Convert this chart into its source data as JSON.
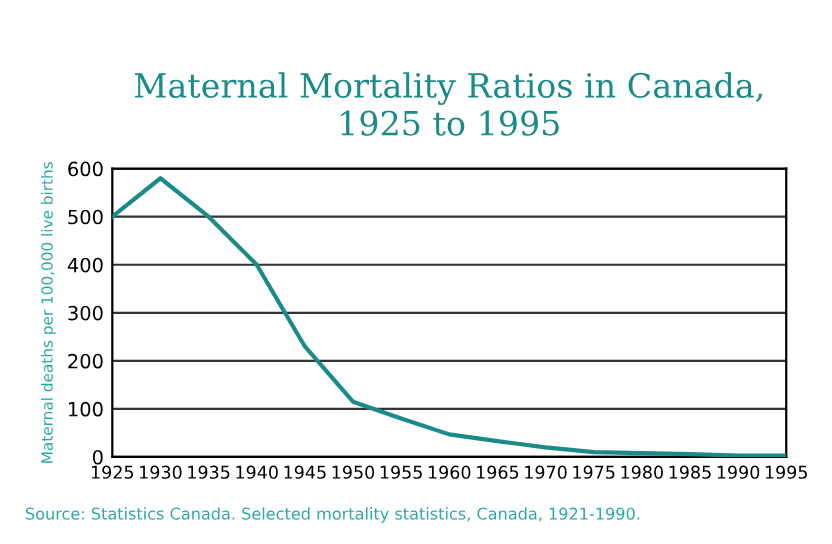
{
  "chart_data": {
    "type": "line",
    "title": "Maternal Mortality Ratios in Canada,\n1925 to 1995",
    "ylabel": "Maternal deaths per 100,000 live births",
    "x": [
      1925,
      1930,
      1935,
      1940,
      1945,
      1950,
      1955,
      1960,
      1965,
      1970,
      1975,
      1980,
      1985,
      1990,
      1995
    ],
    "series": [
      {
        "color": "#1a8a8a",
        "values": [
          500,
          580,
          500,
          400,
          230,
          115,
          80,
          47,
          33,
          20,
          10,
          8,
          6,
          3,
          3
        ]
      }
    ],
    "xlim": [
      1925,
      1995
    ],
    "xticks": [
      1925,
      1930,
      1935,
      1940,
      1945,
      1950,
      1955,
      1960,
      1965,
      1970,
      1975,
      1980,
      1985,
      1990,
      1995
    ],
    "ylim": [
      0,
      600
    ],
    "yticks": [
      0,
      100,
      200,
      300,
      400,
      500,
      600
    ],
    "grid": "y",
    "marker": "none",
    "line_style": "solid",
    "annotations": [
      "Source: Statistics Canada. Selected mortality statistics, Canada, 1921-1990."
    ]
  }
}
